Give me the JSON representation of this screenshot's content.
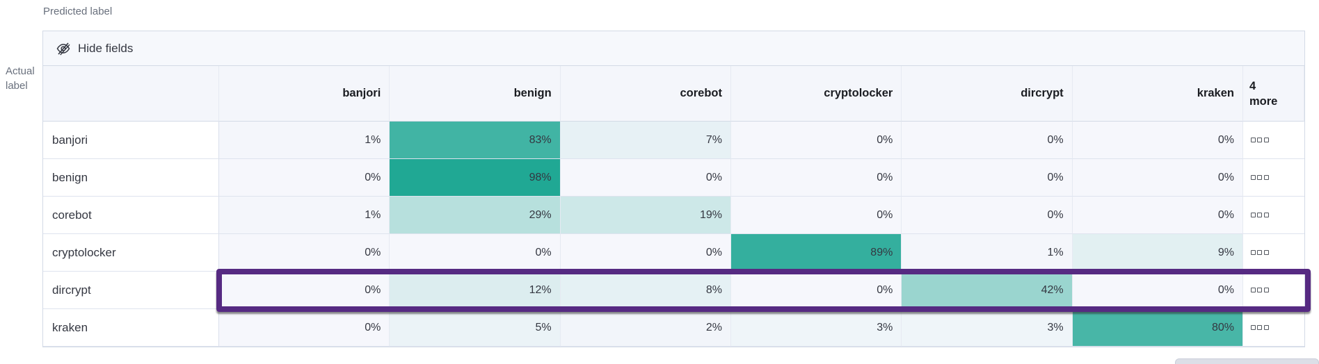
{
  "labels": {
    "predicted": "Predicted label",
    "actual": "Actual label"
  },
  "toolbar": {
    "hide_fields": "Hide fields"
  },
  "grid": {
    "columns": [
      "banjori",
      "benign",
      "corebot",
      "cryptolocker",
      "dircrypt",
      "kraken"
    ],
    "more_header": "4 more",
    "value_unit": "%",
    "rows": [
      {
        "label": "banjori",
        "values": [
          1,
          83,
          7,
          0,
          0,
          0
        ]
      },
      {
        "label": "benign",
        "values": [
          0,
          98,
          0,
          0,
          0,
          0
        ]
      },
      {
        "label": "corebot",
        "values": [
          1,
          29,
          19,
          0,
          0,
          0
        ]
      },
      {
        "label": "cryptolocker",
        "values": [
          0,
          0,
          0,
          89,
          1,
          9
        ]
      },
      {
        "label": "dircrypt",
        "values": [
          0,
          12,
          8,
          0,
          42,
          0
        ]
      },
      {
        "label": "kraken",
        "values": [
          0,
          5,
          2,
          3,
          3,
          80
        ]
      }
    ],
    "highlighted_row": "dircrypt"
  },
  "chart_data": {
    "type": "heatmap",
    "x_axis_label": "Predicted label",
    "y_axis_label": "Actual label",
    "x_categories": [
      "banjori",
      "benign",
      "corebot",
      "cryptolocker",
      "dircrypt",
      "kraken"
    ],
    "y_categories": [
      "banjori",
      "benign",
      "corebot",
      "cryptolocker",
      "dircrypt",
      "kraken"
    ],
    "values_percent": [
      [
        1,
        83,
        7,
        0,
        0,
        0
      ],
      [
        0,
        98,
        0,
        0,
        0,
        0
      ],
      [
        1,
        29,
        19,
        0,
        0,
        0
      ],
      [
        0,
        0,
        0,
        89,
        1,
        9
      ],
      [
        0,
        12,
        8,
        0,
        42,
        0
      ],
      [
        0,
        5,
        2,
        3,
        3,
        80
      ]
    ],
    "hidden_columns_note": "4 more",
    "highlighted_row": "dircrypt"
  },
  "colors": {
    "heat_full": "#1CA692",
    "heat_zero": "#F6F7FC",
    "header_bg": "#F4F6FB",
    "highlight_border": "#562A82",
    "text": "#343741",
    "axis_text": "#69707D"
  }
}
